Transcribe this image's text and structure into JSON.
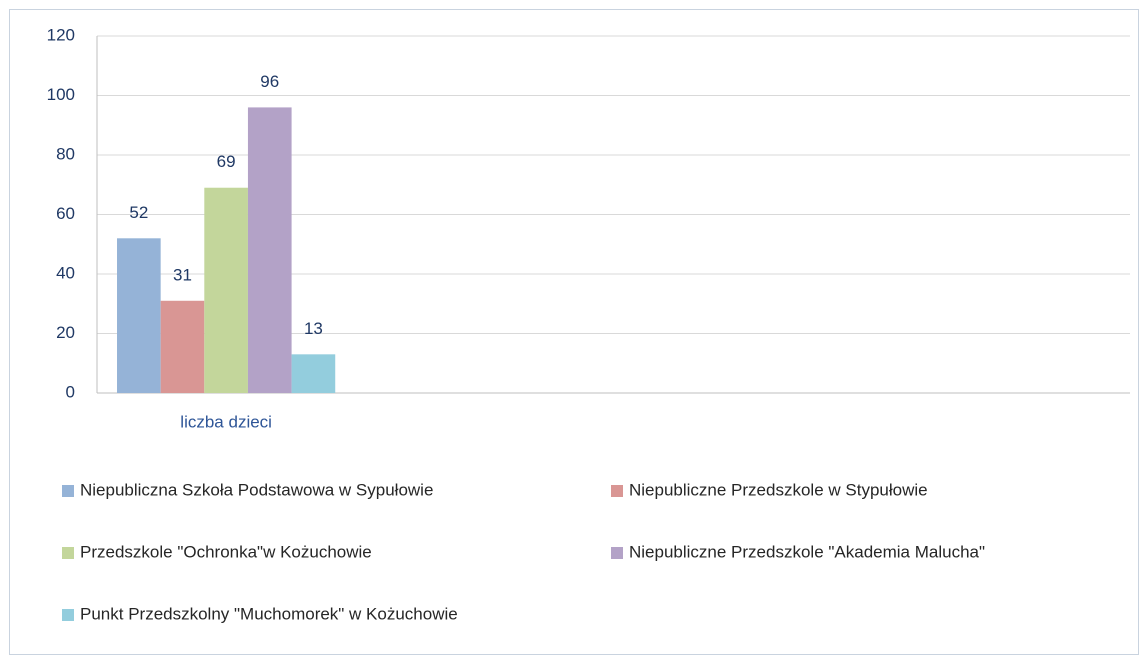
{
  "chart_data": {
    "type": "bar",
    "categories": [
      "liczba dzieci",
      null,
      null,
      null
    ],
    "series": [
      {
        "name": "Niepubliczna Szkoła Podstawowa w Sypułowie",
        "color": "#95b3d7",
        "values": [
          52,
          null,
          null,
          null
        ]
      },
      {
        "name": "Niepubliczne Przedszkole w Stypułowie",
        "color": "#d99694",
        "values": [
          31,
          null,
          null,
          null
        ]
      },
      {
        "name": "Przedszkole \"Ochronka\"w Kożuchowie",
        "color": "#c3d69b",
        "values": [
          69,
          null,
          null,
          null
        ]
      },
      {
        "name": "Niepubliczne Przedszkole \"Akademia Malucha\"",
        "color": "#b3a2c7",
        "values": [
          96,
          null,
          null,
          null
        ]
      },
      {
        "name": "Punkt Przedszkolny \"Muchomorek\" w Kożuchowie",
        "color": "#93cddd",
        "values": [
          13,
          null,
          null,
          null
        ]
      }
    ],
    "ylim": [
      0,
      120
    ],
    "yticks": [
      0,
      20,
      40,
      60,
      80,
      100,
      120
    ],
    "grid": true,
    "legend": "bottom"
  }
}
